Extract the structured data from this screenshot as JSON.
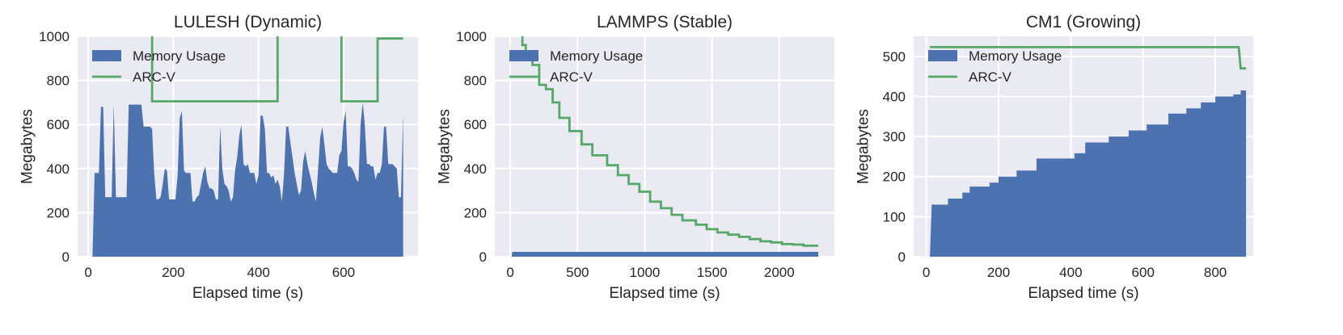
{
  "chart_data": [
    {
      "type": "area",
      "title": "LULESH (Dynamic)",
      "xlabel": "Elapsed time (s)",
      "ylabel": "Megabytes",
      "xlim": [
        -25,
        775
      ],
      "ylim": [
        0,
        1000
      ],
      "xticks": [
        0,
        200,
        400,
        600
      ],
      "yticks": [
        0,
        200,
        400,
        600,
        800,
        1000
      ],
      "grid": true,
      "legend_position": "top-left",
      "series": [
        {
          "name": "Memory Usage",
          "style": "area",
          "color": "#4C72B0",
          "x": [
            10,
            15,
            20,
            25,
            30,
            35,
            40,
            45,
            50,
            55,
            60,
            65,
            70,
            75,
            80,
            85,
            90,
            95,
            100,
            105,
            110,
            115,
            120,
            125,
            130,
            135,
            140,
            145,
            150,
            155,
            160,
            165,
            170,
            175,
            180,
            185,
            190,
            195,
            200,
            205,
            210,
            215,
            220,
            225,
            230,
            235,
            240,
            245,
            250,
            255,
            260,
            265,
            270,
            275,
            280,
            285,
            290,
            295,
            300,
            305,
            310,
            315,
            320,
            325,
            330,
            335,
            340,
            345,
            350,
            355,
            360,
            365,
            370,
            375,
            380,
            385,
            390,
            395,
            400,
            405,
            410,
            415,
            420,
            425,
            430,
            435,
            440,
            445,
            450,
            455,
            460,
            465,
            470,
            475,
            480,
            485,
            490,
            495,
            500,
            505,
            510,
            515,
            520,
            525,
            530,
            535,
            540,
            545,
            550,
            555,
            560,
            565,
            570,
            575,
            580,
            585,
            590,
            595,
            600,
            605,
            610,
            615,
            620,
            625,
            630,
            635,
            640,
            645,
            650,
            655,
            660,
            665,
            670,
            675,
            680,
            685,
            690,
            695,
            700,
            705,
            710,
            715,
            720,
            725,
            730,
            735,
            740
          ],
          "y": [
            0,
            380,
            380,
            380,
            680,
            680,
            270,
            270,
            270,
            270,
            690,
            270,
            270,
            270,
            270,
            270,
            270,
            690,
            690,
            690,
            690,
            690,
            690,
            690,
            590,
            590,
            590,
            590,
            580,
            380,
            260,
            260,
            270,
            330,
            400,
            390,
            260,
            260,
            260,
            260,
            370,
            630,
            660,
            390,
            380,
            380,
            380,
            250,
            250,
            270,
            280,
            330,
            380,
            410,
            340,
            310,
            310,
            300,
            260,
            260,
            590,
            400,
            330,
            320,
            300,
            250,
            270,
            390,
            450,
            550,
            600,
            420,
            410,
            420,
            380,
            380,
            380,
            330,
            370,
            640,
            640,
            580,
            380,
            380,
            360,
            370,
            330,
            350,
            320,
            250,
            370,
            590,
            590,
            520,
            450,
            380,
            330,
            280,
            300,
            430,
            480,
            420,
            380,
            340,
            290,
            250,
            390,
            540,
            590,
            510,
            420,
            400,
            390,
            380,
            380,
            380,
            460,
            480,
            610,
            660,
            410,
            410,
            400,
            380,
            350,
            340,
            600,
            700,
            600,
            420,
            420,
            410,
            410,
            350,
            380,
            380,
            420,
            590,
            590,
            420,
            420,
            420,
            410,
            400,
            270,
            270,
            650
          ]
        },
        {
          "name": "ARC-V",
          "style": "line",
          "color": "#55A868",
          "x": [
            150,
            150,
            445,
            445,
            595,
            595,
            680,
            680,
            740
          ],
          "y": [
            1050,
            705,
            705,
            1050,
            1050,
            705,
            705,
            990,
            990
          ]
        }
      ]
    },
    {
      "type": "area",
      "title": "LAMMPS (Stable)",
      "xlabel": "Elapsed time (s)",
      "ylabel": "Megabytes",
      "xlim": [
        -115,
        2410
      ],
      "ylim": [
        0,
        1000
      ],
      "xticks": [
        0,
        500,
        1000,
        1500,
        2000
      ],
      "yticks": [
        0,
        200,
        400,
        600,
        800,
        1000
      ],
      "grid": true,
      "legend_position": "top-left",
      "series": [
        {
          "name": "Memory Usage",
          "style": "area",
          "color": "#4C72B0",
          "x": [
            10,
            15,
            2290
          ],
          "y": [
            0,
            22,
            22
          ]
        },
        {
          "name": "ARC-V",
          "style": "line",
          "color": "#55A868",
          "x": [
            90,
            90,
            115,
            115,
            165,
            165,
            215,
            215,
            265,
            265,
            315,
            315,
            365,
            365,
            440,
            440,
            530,
            530,
            610,
            610,
            720,
            720,
            800,
            800,
            880,
            880,
            960,
            960,
            1040,
            1040,
            1120,
            1120,
            1200,
            1200,
            1280,
            1280,
            1380,
            1380,
            1460,
            1460,
            1540,
            1540,
            1620,
            1620,
            1700,
            1700,
            1780,
            1780,
            1860,
            1860,
            1940,
            1940,
            2020,
            2020,
            2100,
            2100,
            2180,
            2180,
            2290
          ],
          "y": [
            1000,
            960,
            960,
            920,
            920,
            870,
            870,
            780,
            780,
            760,
            760,
            700,
            700,
            630,
            630,
            570,
            570,
            510,
            510,
            460,
            460,
            415,
            415,
            370,
            370,
            330,
            330,
            295,
            295,
            250,
            250,
            220,
            220,
            190,
            190,
            165,
            165,
            145,
            145,
            125,
            125,
            110,
            110,
            100,
            100,
            90,
            90,
            80,
            80,
            70,
            70,
            65,
            65,
            57,
            57,
            55,
            55,
            50,
            50
          ]
        }
      ]
    },
    {
      "type": "area",
      "title": "CM1 (Growing)",
      "xlabel": "Elapsed time (s)",
      "ylabel": "Megabytes",
      "xlim": [
        -35,
        905
      ],
      "ylim": [
        0,
        550
      ],
      "xticks": [
        0,
        200,
        400,
        600,
        800
      ],
      "yticks": [
        0,
        100,
        200,
        300,
        400,
        500
      ],
      "grid": true,
      "legend_position": "top-left",
      "series": [
        {
          "name": "Memory Usage",
          "style": "area",
          "color": "#4C72B0",
          "x": [
            10,
            15,
            15,
            60,
            60,
            100,
            100,
            120,
            120,
            175,
            175,
            200,
            200,
            250,
            250,
            305,
            305,
            350,
            350,
            410,
            410,
            440,
            440,
            505,
            505,
            560,
            560,
            610,
            610,
            670,
            670,
            720,
            720,
            760,
            760,
            800,
            800,
            850,
            850,
            870,
            870,
            885
          ],
          "y": [
            0,
            130,
            130,
            130,
            145,
            145,
            160,
            160,
            175,
            175,
            185,
            185,
            200,
            200,
            215,
            215,
            245,
            245,
            245,
            245,
            258,
            258,
            285,
            285,
            300,
            300,
            315,
            315,
            330,
            330,
            357,
            357,
            370,
            370,
            385,
            385,
            400,
            400,
            405,
            405,
            415,
            415
          ]
        },
        {
          "name": "ARC-V",
          "style": "line",
          "color": "#55A868",
          "x": [
            10,
            865,
            870,
            885
          ],
          "y": [
            523,
            523,
            470,
            470
          ]
        }
      ]
    }
  ]
}
